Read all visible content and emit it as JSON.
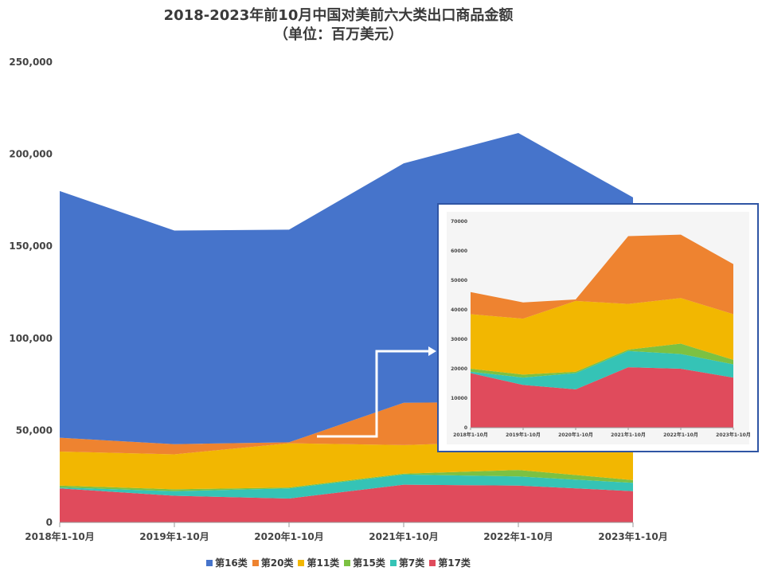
{
  "title_line1": "2018-2023年前10月中国对美前六大类出口商品金额",
  "title_line2": "（单位：百万美元）",
  "chart_data": [
    {
      "type": "area",
      "stacked": true,
      "categories": [
        "2018年1-10月",
        "2019年1-10月",
        "2020年1-10月",
        "2021年1-10月",
        "2022年1-10月",
        "2023年1-10月"
      ],
      "series": [
        {
          "name": "第17类",
          "color": "#e04b5c",
          "values": [
            18500,
            14500,
            13000,
            20500,
            20000,
            17000
          ]
        },
        {
          "name": "第7类",
          "color": "#35c3b6",
          "values": [
            500,
            2500,
            5500,
            5500,
            5000,
            4500
          ]
        },
        {
          "name": "第15类",
          "color": "#7cc142",
          "values": [
            1000,
            1000,
            500,
            500,
            3500,
            1500
          ]
        },
        {
          "name": "第11类",
          "color": "#f2b701",
          "values": [
            18500,
            19000,
            24000,
            15500,
            15500,
            15500
          ]
        },
        {
          "name": "第20类",
          "color": "#ee8330",
          "values": [
            7500,
            5500,
            500,
            23000,
            21500,
            17000
          ]
        },
        {
          "name": "第16类",
          "color": "#4674cb",
          "values": [
            134000,
            116000,
            115500,
            130000,
            146000,
            121000
          ]
        }
      ],
      "legend_order": [
        "第16类",
        "第20类",
        "第11类",
        "第15类",
        "第7类",
        "第17类"
      ],
      "yticks": [
        "0",
        "50,000",
        "100,000",
        "150,000",
        "200,000",
        "250,000"
      ],
      "ylim": [
        0,
        250000
      ],
      "legend_position": "bottom"
    },
    {
      "type": "area",
      "stacked": true,
      "categories": [
        "2018年1-10月",
        "2019年1-10月",
        "2020年1-10月",
        "2021年1-10月",
        "2022年1-10月",
        "2023年1-10月"
      ],
      "series": [
        {
          "name": "第17类",
          "color": "#e04b5c",
          "values": [
            18500,
            14500,
            13000,
            20500,
            20000,
            17000
          ]
        },
        {
          "name": "第7类",
          "color": "#35c3b6",
          "values": [
            500,
            2500,
            5500,
            5500,
            5000,
            4500
          ]
        },
        {
          "name": "第15类",
          "color": "#7cc142",
          "values": [
            1000,
            1000,
            500,
            500,
            3500,
            1500
          ]
        },
        {
          "name": "第11类",
          "color": "#f2b701",
          "values": [
            18500,
            19000,
            24000,
            15500,
            15500,
            15500
          ]
        },
        {
          "name": "第20类",
          "color": "#ee8330",
          "values": [
            7500,
            5500,
            500,
            23000,
            21500,
            17000
          ]
        }
      ],
      "yticks": [
        "0",
        "10000",
        "20000",
        "30000",
        "40000",
        "50000",
        "60000",
        "70000"
      ],
      "ylim": [
        0,
        70000
      ]
    }
  ]
}
